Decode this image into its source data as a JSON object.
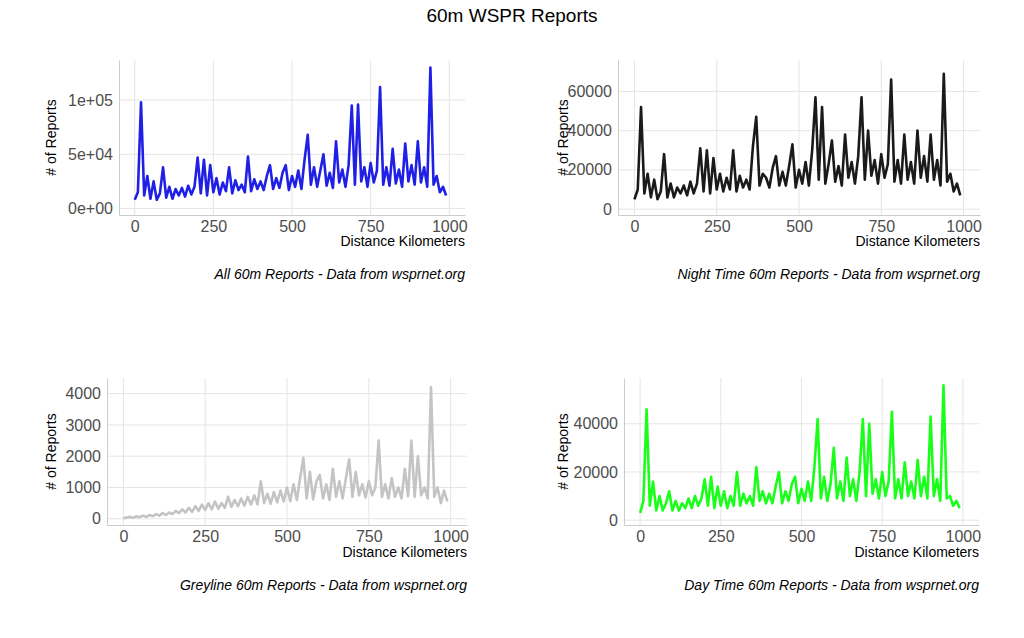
{
  "title": "60m WSPR Reports",
  "chart_data": [
    {
      "type": "line",
      "color": "#1f1fe6",
      "grid": true,
      "annotations": [
        "All 60m Reports - Data from wsprnet.org"
      ],
      "x_label": "Distance Kilometers",
      "y_label": "# of Reports",
      "xlim": [
        -50,
        1050
      ],
      "xticks": [
        0,
        250,
        500,
        750,
        1000
      ],
      "ylim": [
        -6000,
        137000
      ],
      "yticks": [
        {
          "value": 0,
          "label": "0e+00"
        },
        {
          "value": 50000,
          "label": "5e+04"
        },
        {
          "value": 100000,
          "label": "1e+05"
        }
      ],
      "x": [
        0,
        10,
        20,
        30,
        40,
        50,
        60,
        70,
        80,
        90,
        100,
        110,
        120,
        130,
        140,
        150,
        160,
        170,
        180,
        190,
        200,
        210,
        220,
        230,
        240,
        250,
        260,
        270,
        280,
        290,
        300,
        310,
        320,
        330,
        340,
        350,
        360,
        370,
        380,
        390,
        400,
        410,
        420,
        430,
        440,
        450,
        460,
        470,
        480,
        490,
        500,
        510,
        520,
        530,
        540,
        550,
        560,
        570,
        580,
        590,
        600,
        610,
        620,
        630,
        640,
        650,
        660,
        670,
        680,
        690,
        700,
        710,
        720,
        730,
        740,
        750,
        760,
        770,
        780,
        790,
        800,
        810,
        820,
        830,
        840,
        850,
        860,
        870,
        880,
        890,
        900,
        910,
        920,
        930,
        940,
        950,
        960,
        970,
        980,
        990
      ],
      "values": [
        8000,
        15000,
        98000,
        12000,
        30000,
        9000,
        25000,
        8000,
        14000,
        38000,
        10000,
        20000,
        9000,
        18000,
        12000,
        19000,
        11000,
        21000,
        13000,
        20000,
        47000,
        14000,
        45000,
        12000,
        40000,
        15000,
        28000,
        13000,
        24000,
        16000,
        38000,
        14000,
        26000,
        17000,
        22000,
        15000,
        48000,
        16000,
        27000,
        18000,
        25000,
        17000,
        30000,
        40000,
        18000,
        28000,
        19000,
        33000,
        40000,
        17000,
        30000,
        20000,
        35000,
        18000,
        45000,
        68000,
        22000,
        38000,
        20000,
        35000,
        50000,
        21000,
        33000,
        19000,
        62000,
        24000,
        36000,
        20000,
        40000,
        95000,
        22000,
        96000,
        25000,
        38000,
        20000,
        42000,
        24000,
        35000,
        112000,
        22000,
        38000,
        21000,
        55000,
        23000,
        36000,
        20000,
        60000,
        25000,
        40000,
        22000,
        62000,
        24000,
        38000,
        20000,
        130000,
        22000,
        30000,
        15000,
        20000,
        12000
      ]
    },
    {
      "type": "line",
      "color": "#1a1a1a",
      "grid": true,
      "annotations": [
        "Night Time 60m Reports - Data from wsprnet.org"
      ],
      "x_label": "Distance Kilometers",
      "y_label": "# of Reports",
      "xlim": [
        -50,
        1050
      ],
      "xticks": [
        0,
        250,
        500,
        750,
        1000
      ],
      "ylim": [
        -3000,
        76000
      ],
      "yticks": [
        0,
        20000,
        40000,
        60000
      ],
      "x": [
        0,
        10,
        20,
        30,
        40,
        50,
        60,
        70,
        80,
        90,
        100,
        110,
        120,
        130,
        140,
        150,
        160,
        170,
        180,
        190,
        200,
        210,
        220,
        230,
        240,
        250,
        260,
        270,
        280,
        290,
        300,
        310,
        320,
        330,
        340,
        350,
        360,
        370,
        380,
        390,
        400,
        410,
        420,
        430,
        440,
        450,
        460,
        470,
        480,
        490,
        500,
        510,
        520,
        530,
        540,
        550,
        560,
        570,
        580,
        590,
        600,
        610,
        620,
        630,
        640,
        650,
        660,
        670,
        680,
        690,
        700,
        710,
        720,
        730,
        740,
        750,
        760,
        770,
        780,
        790,
        800,
        810,
        820,
        830,
        840,
        850,
        860,
        870,
        880,
        890,
        900,
        910,
        920,
        930,
        940,
        950,
        960,
        970,
        980,
        990
      ],
      "values": [
        5000,
        10000,
        52000,
        8000,
        18000,
        6000,
        15000,
        5000,
        9000,
        28000,
        6000,
        13000,
        6000,
        11000,
        8000,
        12000,
        7000,
        14000,
        8000,
        13000,
        31000,
        9000,
        30000,
        8000,
        26000,
        10000,
        18000,
        9000,
        16000,
        10000,
        30000,
        9000,
        17000,
        11000,
        15000,
        10000,
        32000,
        47000,
        12000,
        18000,
        16000,
        11000,
        21000,
        27000,
        12000,
        19000,
        12000,
        22000,
        33000,
        11000,
        20000,
        13000,
        24000,
        12000,
        30000,
        57000,
        15000,
        52000,
        13000,
        23000,
        35000,
        14000,
        22000,
        12000,
        38000,
        16000,
        24000,
        13000,
        27000,
        57000,
        15000,
        40000,
        17000,
        25000,
        13000,
        28000,
        16000,
        23000,
        66000,
        14000,
        25000,
        13000,
        38000,
        15000,
        24000,
        13000,
        40000,
        16000,
        27000,
        14000,
        38000,
        15000,
        25000,
        12000,
        69000,
        14000,
        18000,
        9000,
        13000,
        7000
      ]
    },
    {
      "type": "line",
      "color": "#c4c4c4",
      "grid": true,
      "annotations": [
        "Greyline 60m Reports - Data from wsprnet.org"
      ],
      "x_label": "Distance Kilometers",
      "y_label": "# of Reports",
      "xlim": [
        -50,
        1050
      ],
      "xticks": [
        0,
        250,
        500,
        750,
        1000
      ],
      "ylim": [
        -200,
        4500
      ],
      "yticks": [
        0,
        1000,
        2000,
        3000,
        4000
      ],
      "x": [
        0,
        10,
        20,
        30,
        40,
        50,
        60,
        70,
        80,
        90,
        100,
        110,
        120,
        130,
        140,
        150,
        160,
        170,
        180,
        190,
        200,
        210,
        220,
        230,
        240,
        250,
        260,
        270,
        280,
        290,
        300,
        310,
        320,
        330,
        340,
        350,
        360,
        370,
        380,
        390,
        400,
        410,
        420,
        430,
        440,
        450,
        460,
        470,
        480,
        490,
        500,
        510,
        520,
        530,
        540,
        550,
        560,
        570,
        580,
        590,
        600,
        610,
        620,
        630,
        640,
        650,
        660,
        670,
        680,
        690,
        700,
        710,
        720,
        730,
        740,
        750,
        760,
        770,
        780,
        790,
        800,
        810,
        820,
        830,
        840,
        850,
        860,
        870,
        880,
        890,
        900,
        910,
        920,
        930,
        940,
        950,
        960,
        970,
        980,
        990
      ],
      "values": [
        20,
        40,
        60,
        30,
        80,
        50,
        100,
        60,
        120,
        80,
        150,
        100,
        180,
        120,
        200,
        150,
        250,
        180,
        300,
        200,
        350,
        220,
        400,
        250,
        450,
        280,
        500,
        300,
        550,
        320,
        500,
        350,
        700,
        380,
        600,
        400,
        650,
        420,
        700,
        450,
        750,
        460,
        1200,
        500,
        800,
        480,
        850,
        520,
        900,
        550,
        1000,
        560,
        1100,
        600,
        1300,
        1950,
        650,
        1500,
        620,
        1200,
        1400,
        650,
        1100,
        600,
        1600,
        700,
        1200,
        650,
        1300,
        1900,
        700,
        1500,
        750,
        1100,
        680,
        1200,
        750,
        1000,
        2500,
        700,
        1100,
        650,
        1300,
        700,
        1000,
        650,
        1600,
        720,
        2500,
        700,
        2000,
        750,
        1000,
        650,
        4200,
        700,
        1000,
        500,
        900,
        550
      ]
    },
    {
      "type": "line",
      "color": "#1aff1a",
      "grid": true,
      "annotations": [
        "Day Time 60m Reports - Data from wsprnet.org"
      ],
      "x_label": "Distance Kilometers",
      "y_label": "# of Reports",
      "xlim": [
        -50,
        1050
      ],
      "xticks": [
        0,
        250,
        500,
        750,
        1000
      ],
      "ylim": [
        -2000,
        59000
      ],
      "yticks": [
        0,
        20000,
        40000
      ],
      "x": [
        0,
        10,
        20,
        30,
        40,
        50,
        60,
        70,
        80,
        90,
        100,
        110,
        120,
        130,
        140,
        150,
        160,
        170,
        180,
        190,
        200,
        210,
        220,
        230,
        240,
        250,
        260,
        270,
        280,
        290,
        300,
        310,
        320,
        330,
        340,
        350,
        360,
        370,
        380,
        390,
        400,
        410,
        420,
        430,
        440,
        450,
        460,
        470,
        480,
        490,
        500,
        510,
        520,
        530,
        540,
        550,
        560,
        570,
        580,
        590,
        600,
        610,
        620,
        630,
        640,
        650,
        660,
        670,
        680,
        690,
        700,
        710,
        720,
        730,
        740,
        750,
        760,
        770,
        780,
        790,
        800,
        810,
        820,
        830,
        840,
        850,
        860,
        870,
        880,
        890,
        900,
        910,
        920,
        930,
        940,
        950,
        960,
        970,
        980,
        990
      ],
      "values": [
        3000,
        8000,
        46000,
        6000,
        16000,
        4000,
        10000,
        4000,
        7000,
        12000,
        4000,
        8000,
        4000,
        7000,
        5000,
        9000,
        5000,
        10000,
        6000,
        9000,
        17000,
        6000,
        18000,
        5000,
        14000,
        6000,
        12000,
        5000,
        10000,
        6000,
        20000,
        6000,
        11000,
        7000,
        10000,
        6000,
        22000,
        8000,
        12000,
        7000,
        11000,
        7000,
        14000,
        20000,
        7000,
        12000,
        8000,
        15000,
        18000,
        7000,
        13000,
        8000,
        16000,
        8000,
        22000,
        42000,
        9000,
        18000,
        8000,
        15000,
        30000,
        9000,
        16000,
        8000,
        26000,
        10000,
        17000,
        8000,
        20000,
        42000,
        10000,
        40000,
        11000,
        17000,
        9000,
        20000,
        10000,
        16000,
        45000,
        9000,
        17000,
        9000,
        24000,
        10000,
        16000,
        9000,
        25000,
        10000,
        18000,
        9000,
        43000,
        10000,
        17000,
        8000,
        56000,
        9000,
        10000,
        6000,
        8000,
        5000
      ]
    }
  ]
}
